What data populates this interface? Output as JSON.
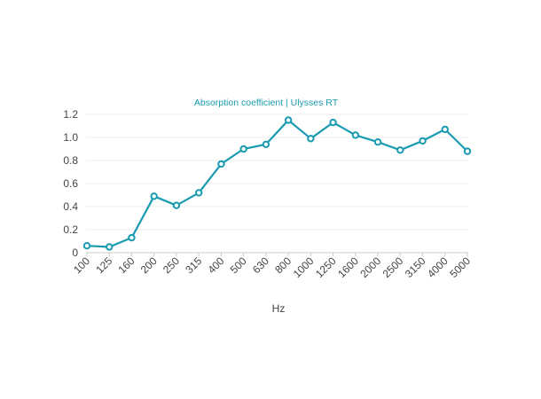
{
  "chart_data": {
    "type": "line",
    "title": "Absorption coefficient | Ulysses RT",
    "xlabel": "Hz",
    "ylabel": "",
    "ylim": [
      0,
      1.2
    ],
    "yticks": [
      0,
      0.2,
      0.4,
      0.6,
      0.8,
      1.0,
      1.2
    ],
    "ytick_labels": [
      "0",
      "0.2",
      "0.4",
      "0.6",
      "0.8",
      "1.0",
      "1.2"
    ],
    "categories": [
      "100",
      "125",
      "160",
      "200",
      "250",
      "315",
      "400",
      "500",
      "630",
      "800",
      "1000",
      "1250",
      "1600",
      "2000",
      "2500",
      "3150",
      "4000",
      "5000"
    ],
    "series": [
      {
        "values": [
          0.06,
          0.05,
          0.13,
          0.49,
          0.41,
          0.52,
          0.77,
          0.9,
          0.94,
          1.15,
          0.99,
          1.13,
          1.02,
          0.96,
          0.89,
          0.97,
          1.07,
          0.88
        ],
        "color": "#1a9bb0"
      }
    ],
    "grid": true,
    "legend": "none"
  }
}
